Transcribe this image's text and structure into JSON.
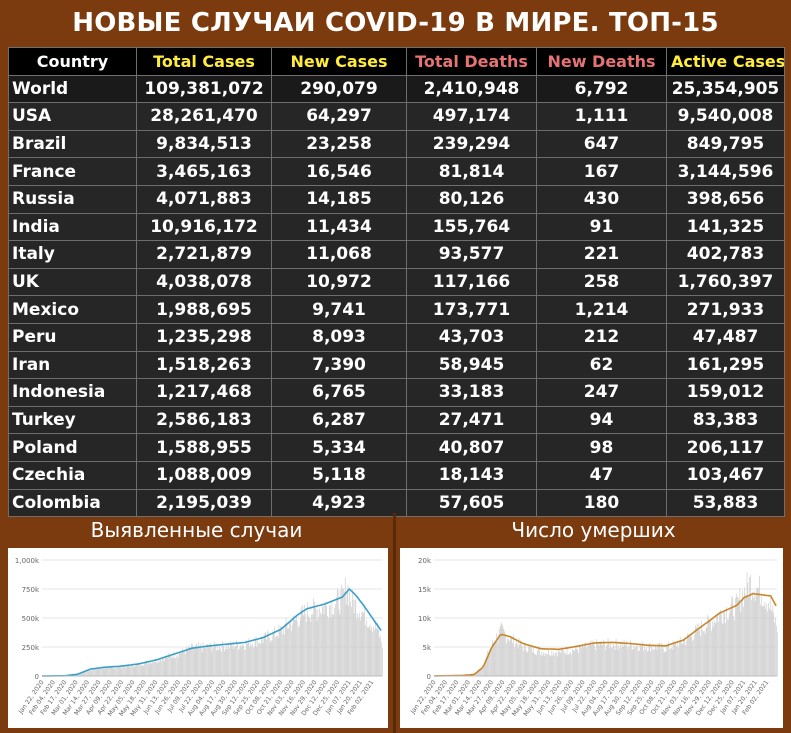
{
  "title": "НОВЫЕ СЛУЧАИ COVID-19 В МИРЕ. ТОП-15",
  "columns": [
    "Country",
    "Total Cases",
    "New Cases",
    "Total Deaths",
    "New Deaths",
    "Active Cases"
  ],
  "colors": {
    "background": "#7b3b0f",
    "header_yellow": "#ffeb3b",
    "header_red": "#e57373",
    "cases_line": "#3a9fc8",
    "deaths_line": "#c8862a",
    "bars": "#c8c8c8"
  },
  "rows": [
    [
      "World",
      "109,381,072",
      "290,079",
      "2,410,948",
      "6,792",
      "25,354,905"
    ],
    [
      "USA",
      "28,261,470",
      "64,297",
      "497,174",
      "1,111",
      "9,540,008"
    ],
    [
      "Brazil",
      "9,834,513",
      "23,258",
      "239,294",
      "647",
      "849,795"
    ],
    [
      "France",
      "3,465,163",
      "16,546",
      "81,814",
      "167",
      "3,144,596"
    ],
    [
      "Russia",
      "4,071,883",
      "14,185",
      "80,126",
      "430",
      "398,656"
    ],
    [
      "India",
      "10,916,172",
      "11,434",
      "155,764",
      "91",
      "141,325"
    ],
    [
      "Italy",
      "2,721,879",
      "11,068",
      "93,577",
      "221",
      "402,783"
    ],
    [
      "UK",
      "4,038,078",
      "10,972",
      "117,166",
      "258",
      "1,760,397"
    ],
    [
      "Mexico",
      "1,988,695",
      "9,741",
      "173,771",
      "1,214",
      "271,933"
    ],
    [
      "Peru",
      "1,235,298",
      "8,093",
      "43,703",
      "212",
      "47,487"
    ],
    [
      "Iran",
      "1,518,263",
      "7,390",
      "58,945",
      "62",
      "161,295"
    ],
    [
      "Indonesia",
      "1,217,468",
      "6,765",
      "33,183",
      "247",
      "159,012"
    ],
    [
      "Turkey",
      "2,586,183",
      "6,287",
      "27,471",
      "94",
      "83,383"
    ],
    [
      "Poland",
      "1,588,955",
      "5,334",
      "40,807",
      "98",
      "206,117"
    ],
    [
      "Czechia",
      "1,088,009",
      "5,118",
      "18,143",
      "47",
      "103,467"
    ],
    [
      "Colombia",
      "2,195,039",
      "4,923",
      "57,605",
      "180",
      "53,883"
    ]
  ],
  "panels": {
    "cases_title": "Выявленные случаи",
    "deaths_title": "Число умерших"
  },
  "chart_data": [
    {
      "type": "bar",
      "title": "",
      "ylim": [
        0,
        1000000
      ],
      "y_ticks": [
        "0",
        "250k",
        "500k",
        "750k",
        "1,000k"
      ],
      "y_tick_values": [
        0,
        250000,
        500000,
        750000,
        1000000
      ],
      "x_ticks": [
        "Jan 22, 2020",
        "Feb 04, 2020",
        "Feb 17, 2020",
        "Mar 01, 2020",
        "Mar 14, 2020",
        "Mar 27, 2020",
        "Apr 09, 2020",
        "Apr 22, 2020",
        "May 05, 2020",
        "May 18, 2020",
        "May 31, 2020",
        "Jun 13, 2020",
        "Jun 26, 2020",
        "Jul 09, 2020",
        "Jul 22, 2020",
        "Aug 04, 2020",
        "Aug 17, 2020",
        "Aug 30, 2020",
        "Sep 12, 2020",
        "Sep 25, 2020",
        "Oct 08, 2020",
        "Oct 21, 2020",
        "Nov 03, 2020",
        "Nov 16, 2020",
        "Nov 29, 2020",
        "Dec 12, 2020",
        "Dec 25, 2020",
        "Jan 07, 2021",
        "Jan 20, 2021",
        "Feb 02, 2021"
      ],
      "series": [
        {
          "kind": "bars",
          "points": [
            [
              0,
              500
            ],
            [
              25,
              2000
            ],
            [
              40,
              20000
            ],
            [
              55,
              60000
            ],
            [
              70,
              80000
            ],
            [
              90,
              85000
            ],
            [
              110,
              110000
            ],
            [
              130,
              150000
            ],
            [
              150,
              200000
            ],
            [
              170,
              260000
            ],
            [
              190,
              270000
            ],
            [
              210,
              280000
            ],
            [
              230,
              300000
            ],
            [
              250,
              340000
            ],
            [
              270,
              420000
            ],
            [
              290,
              540000
            ],
            [
              300,
              600000
            ],
            [
              310,
              620000
            ],
            [
              320,
              650000
            ],
            [
              330,
              680000
            ],
            [
              340,
              720000
            ],
            [
              345,
              840000
            ],
            [
              350,
              700000
            ],
            [
              360,
              620000
            ],
            [
              370,
              520000
            ],
            [
              380,
              430000
            ],
            [
              385,
              290000
            ]
          ]
        },
        {
          "kind": "line",
          "points": [
            [
              0,
              500
            ],
            [
              25,
              2000
            ],
            [
              40,
              15000
            ],
            [
              55,
              60000
            ],
            [
              70,
              75000
            ],
            [
              90,
              85000
            ],
            [
              110,
              105000
            ],
            [
              130,
              140000
            ],
            [
              150,
              190000
            ],
            [
              170,
              240000
            ],
            [
              190,
              260000
            ],
            [
              210,
              275000
            ],
            [
              230,
              290000
            ],
            [
              250,
              330000
            ],
            [
              270,
              400000
            ],
            [
              290,
              530000
            ],
            [
              300,
              580000
            ],
            [
              310,
              600000
            ],
            [
              320,
              620000
            ],
            [
              330,
              650000
            ],
            [
              340,
              680000
            ],
            [
              348,
              750000
            ],
            [
              355,
              700000
            ],
            [
              365,
              600000
            ],
            [
              375,
              490000
            ],
            [
              385,
              380000
            ]
          ]
        }
      ]
    },
    {
      "type": "bar",
      "title": "",
      "ylim": [
        0,
        20000
      ],
      "y_ticks": [
        "0",
        "5k",
        "10k",
        "15k",
        "20k"
      ],
      "y_tick_values": [
        0,
        5000,
        10000,
        15000,
        20000
      ],
      "x_ticks": [
        "Jan 22, 2020",
        "Feb 04, 2020",
        "Feb 17, 2020",
        "Mar 01, 2020",
        "Mar 14, 2020",
        "Mar 27, 2020",
        "Apr 09, 2020",
        "Apr 22, 2020",
        "May 05, 2020",
        "May 18, 2020",
        "May 31, 2020",
        "Jun 13, 2020",
        "Jun 26, 2020",
        "Jul 09, 2020",
        "Jul 22, 2020",
        "Aug 04, 2020",
        "Aug 17, 2020",
        "Aug 30, 2020",
        "Sep 12, 2020",
        "Sep 25, 2020",
        "Oct 08, 2020",
        "Oct 21, 2020",
        "Nov 03, 2020",
        "Nov 16, 2020",
        "Nov 29, 2020",
        "Dec 12, 2020",
        "Dec 25, 2020",
        "Jan 07, 2021",
        "Jan 20, 2021",
        "Feb 02, 2021"
      ],
      "series": [
        {
          "kind": "bars",
          "points": [
            [
              0,
              20
            ],
            [
              30,
              80
            ],
            [
              45,
              300
            ],
            [
              55,
              2000
            ],
            [
              65,
              6000
            ],
            [
              75,
              8500
            ],
            [
              85,
              7000
            ],
            [
              100,
              5500
            ],
            [
              120,
              4500
            ],
            [
              140,
              4500
            ],
            [
              160,
              5000
            ],
            [
              180,
              5800
            ],
            [
              200,
              6000
            ],
            [
              220,
              5800
            ],
            [
              240,
              5500
            ],
            [
              260,
              5200
            ],
            [
              280,
              6500
            ],
            [
              300,
              9000
            ],
            [
              310,
              10000
            ],
            [
              320,
              11500
            ],
            [
              330,
              12500
            ],
            [
              340,
              13000
            ],
            [
              345,
              15000
            ],
            [
              355,
              17500
            ],
            [
              365,
              16000
            ],
            [
              375,
              14000
            ],
            [
              385,
              9000
            ]
          ]
        },
        {
          "kind": "line",
          "points": [
            [
              0,
              20
            ],
            [
              30,
              80
            ],
            [
              45,
              250
            ],
            [
              55,
              1500
            ],
            [
              65,
              5000
            ],
            [
              75,
              7200
            ],
            [
              85,
              6800
            ],
            [
              100,
              5600
            ],
            [
              120,
              4700
            ],
            [
              140,
              4600
            ],
            [
              160,
              5100
            ],
            [
              180,
              5700
            ],
            [
              200,
              5800
            ],
            [
              220,
              5600
            ],
            [
              240,
              5300
            ],
            [
              260,
              5200
            ],
            [
              280,
              6200
            ],
            [
              300,
              8500
            ],
            [
              310,
              9600
            ],
            [
              320,
              10800
            ],
            [
              330,
              11500
            ],
            [
              340,
              12200
            ],
            [
              348,
              13500
            ],
            [
              358,
              14200
            ],
            [
              368,
              14000
            ],
            [
              378,
              13800
            ],
            [
              385,
              11800
            ]
          ]
        }
      ]
    }
  ]
}
